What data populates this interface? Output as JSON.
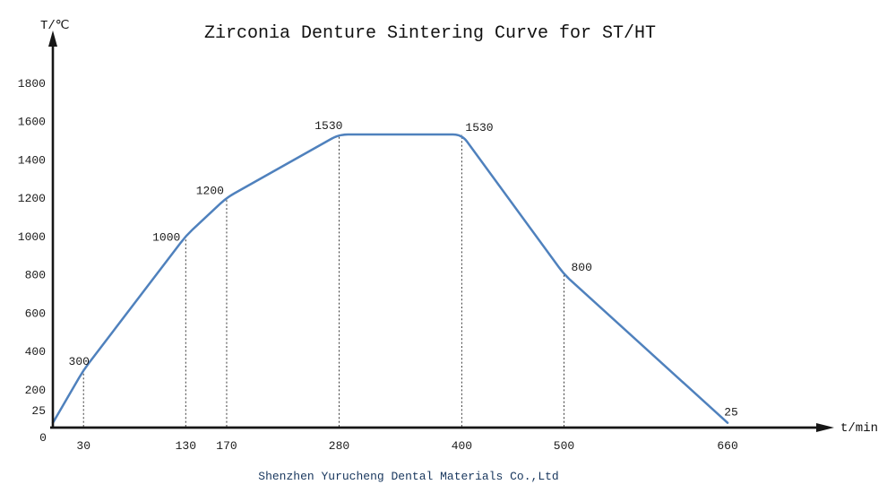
{
  "chart_data": {
    "type": "line",
    "title": "Zirconia Denture Sintering Curve for ST/HT",
    "xlabel": "t/min",
    "ylabel": "T/℃",
    "x_ticks": [
      30,
      130,
      170,
      280,
      400,
      500,
      660
    ],
    "y_ticks": [
      1800,
      1600,
      1400,
      1200,
      1000,
      800,
      600,
      400,
      200,
      25
    ],
    "origin_tick": "0",
    "xlim": [
      0,
      760
    ],
    "ylim": [
      0,
      2000
    ],
    "grid": false,
    "legend_position": "none",
    "line_color": "#4F81BD",
    "axis_color": "#161616",
    "guide_color": "#3a3a3a",
    "points": [
      {
        "t": 0,
        "T": 25,
        "label": ""
      },
      {
        "t": 30,
        "T": 300,
        "label": "300"
      },
      {
        "t": 130,
        "T": 1000,
        "label": "1000"
      },
      {
        "t": 170,
        "T": 1200,
        "label": "1200"
      },
      {
        "t": 280,
        "T": 1530,
        "label": "1530"
      },
      {
        "t": 400,
        "T": 1530,
        "label": "1530"
      },
      {
        "t": 500,
        "T": 800,
        "label": "800"
      },
      {
        "t": 660,
        "T": 25,
        "label": "25"
      }
    ],
    "dotted_guides_at_t": [
      30,
      130,
      170,
      280,
      400,
      500
    ]
  },
  "footer": {
    "company": "Shenzhen Yurucheng Dental Materials Co.,Ltd",
    "color": "#17365D"
  }
}
